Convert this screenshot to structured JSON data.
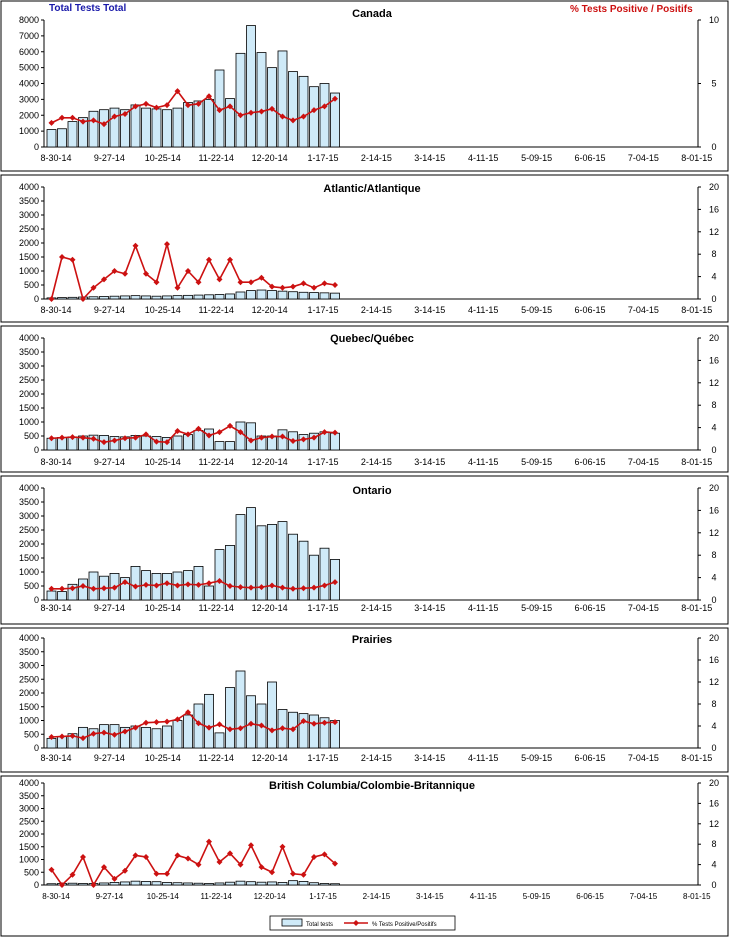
{
  "colors": {
    "bar_fill": "#cfeaf8",
    "bar_stroke": "#000000",
    "line": "#cc1111",
    "tests_title": "#1a1aaa",
    "pct_title": "#cc1111",
    "frame": "#000000"
  },
  "header": {
    "left_title": "Total Tests Total",
    "right_title": "% Tests Positive / Positifs"
  },
  "legend": {
    "tests_label": "Total tests",
    "pct_label": "% Tests Positive/Positifs"
  },
  "chart_data": [
    {
      "type": "bar+line",
      "title": "Canada",
      "categories": [
        "8-30-14",
        "9-27-14",
        "10-25-14",
        "11-22-14",
        "12-20-14",
        "1-17-15",
        "2-14-15",
        "3-14-15",
        "4-11-15",
        "5-09-15",
        "6-06-15",
        "7-04-15",
        "8-01-15"
      ],
      "ylim": [
        0,
        8000
      ],
      "yticks": [
        0,
        1000,
        2000,
        3000,
        4000,
        5000,
        6000,
        7000,
        8000
      ],
      "y2lim": [
        0,
        10
      ],
      "y2ticks": [
        0,
        5,
        10
      ],
      "tests": [
        1100,
        1150,
        1600,
        1850,
        2250,
        2350,
        2450,
        2350,
        2650,
        2450,
        2400,
        2350,
        2450,
        2800,
        2900,
        3000,
        4850,
        3050,
        5900,
        7650,
        5950,
        5000,
        6050,
        4750,
        4450,
        3800,
        4000,
        3400
      ],
      "pct_positive": [
        1.9,
        2.3,
        2.3,
        2.0,
        2.1,
        1.8,
        2.4,
        2.6,
        3.2,
        3.4,
        3.1,
        3.3,
        4.4,
        3.3,
        3.4,
        4.0,
        2.9,
        3.2,
        2.5,
        2.7,
        2.8,
        3.0,
        2.4,
        2.1,
        2.4,
        2.9,
        3.2,
        3.8
      ]
    },
    {
      "type": "bar+line",
      "title": "Atlantic/Atlantique",
      "categories": [
        "8-30-14",
        "9-27-14",
        "10-25-14",
        "11-22-14",
        "12-20-14",
        "1-17-15",
        "2-14-15",
        "3-14-15",
        "4-11-15",
        "5-09-15",
        "6-06-15",
        "7-04-15",
        "8-01-15"
      ],
      "ylim": [
        0,
        4000
      ],
      "yticks": [
        0,
        500,
        1000,
        1500,
        2000,
        2500,
        3000,
        3500,
        4000
      ],
      "y2lim": [
        0,
        20
      ],
      "y2ticks": [
        0,
        4,
        8,
        12,
        16,
        20
      ],
      "tests": [
        40,
        50,
        60,
        70,
        80,
        90,
        100,
        110,
        120,
        110,
        100,
        110,
        120,
        130,
        140,
        150,
        160,
        180,
        250,
        300,
        320,
        300,
        280,
        260,
        240,
        230,
        220,
        210
      ],
      "pct_positive": [
        0,
        7.5,
        7,
        0,
        2,
        3.5,
        5,
        4.5,
        9.5,
        4.5,
        3,
        9.8,
        2,
        5,
        3,
        7,
        3.5,
        7,
        3,
        3,
        3.8,
        2.2,
        2,
        2.2,
        2.8,
        2,
        2.8,
        2.5
      ]
    },
    {
      "type": "bar+line",
      "title": "Quebec/Québec",
      "categories": [
        "8-30-14",
        "9-27-14",
        "10-25-14",
        "11-22-14",
        "12-20-14",
        "1-17-15",
        "2-14-15",
        "3-14-15",
        "4-11-15",
        "5-09-15",
        "6-06-15",
        "7-04-15",
        "8-01-15"
      ],
      "ylim": [
        0,
        4000
      ],
      "yticks": [
        0,
        500,
        1000,
        1500,
        2000,
        2500,
        3000,
        3500,
        4000
      ],
      "y2lim": [
        0,
        20
      ],
      "y2ticks": [
        0,
        4,
        8,
        12,
        16,
        20
      ],
      "tests": [
        420,
        450,
        470,
        500,
        530,
        520,
        480,
        470,
        520,
        500,
        480,
        450,
        500,
        550,
        700,
        750,
        300,
        300,
        1000,
        970,
        500,
        500,
        720,
        650,
        550,
        600,
        650,
        600
      ],
      "pct_positive": [
        2.1,
        2.2,
        2.3,
        2.2,
        2.0,
        1.4,
        1.7,
        2.1,
        2.2,
        2.8,
        1.5,
        1.4,
        3.4,
        2.8,
        3.8,
        2.6,
        3.2,
        4.3,
        3.2,
        1.7,
        2.2,
        2.4,
        2.4,
        1.6,
        1.9,
        2.2,
        3.2,
        3.1
      ]
    },
    {
      "type": "bar+line",
      "title": "Ontario",
      "categories": [
        "8-30-14",
        "9-27-14",
        "10-25-14",
        "11-22-14",
        "12-20-14",
        "1-17-15",
        "2-14-15",
        "3-14-15",
        "4-11-15",
        "5-09-15",
        "6-06-15",
        "7-04-15",
        "8-01-15"
      ],
      "ylim": [
        0,
        4000
      ],
      "yticks": [
        0,
        500,
        1000,
        1500,
        2000,
        2500,
        3000,
        3500,
        4000
      ],
      "y2lim": [
        0,
        20
      ],
      "y2ticks": [
        0,
        4,
        8,
        12,
        16,
        20
      ],
      "tests": [
        320,
        300,
        560,
        750,
        1000,
        850,
        950,
        800,
        1200,
        1050,
        950,
        950,
        1000,
        1050,
        1200,
        500,
        1800,
        1950,
        3050,
        3300,
        2650,
        2700,
        2800,
        2350,
        2100,
        1600,
        1850,
        1450
      ],
      "pct_positive": [
        2.0,
        2.0,
        2.1,
        2.5,
        2.0,
        2.1,
        2.2,
        3.2,
        2.4,
        2.7,
        2.6,
        3.0,
        2.6,
        2.8,
        2.7,
        3.0,
        3.4,
        2.5,
        2.3,
        2.2,
        2.3,
        2.6,
        2.2,
        2.0,
        2.1,
        2.2,
        2.6,
        3.2
      ]
    },
    {
      "type": "bar+line",
      "title": "Prairies",
      "categories": [
        "8-30-14",
        "9-27-14",
        "10-25-14",
        "11-22-14",
        "12-20-14",
        "1-17-15",
        "2-14-15",
        "3-14-15",
        "4-11-15",
        "5-09-15",
        "6-06-15",
        "7-04-15",
        "8-01-15"
      ],
      "ylim": [
        0,
        4000
      ],
      "yticks": [
        0,
        500,
        1000,
        1500,
        2000,
        2500,
        3000,
        3500,
        4000
      ],
      "y2lim": [
        0,
        20
      ],
      "y2ticks": [
        0,
        4,
        8,
        12,
        16,
        20
      ],
      "tests": [
        350,
        420,
        520,
        750,
        700,
        850,
        850,
        750,
        800,
        750,
        700,
        800,
        1000,
        1200,
        1600,
        1950,
        550,
        2200,
        2800,
        1900,
        1600,
        2400,
        1400,
        1300,
        1250,
        1200,
        1100,
        1000
      ],
      "pct_positive": [
        2.0,
        2.1,
        2.2,
        1.8,
        2.6,
        2.8,
        2.4,
        3.0,
        3.7,
        4.6,
        4.7,
        4.8,
        5.2,
        6.5,
        4.5,
        3.7,
        4.3,
        3.4,
        3.6,
        4.4,
        4.1,
        3.2,
        3.6,
        3.4,
        4.9,
        4.4,
        4.6,
        4.7
      ]
    },
    {
      "type": "bar+line",
      "title": "British Columbia/Colombie-Britannique",
      "categories": [
        "8-30-14",
        "9-27-14",
        "10-25-14",
        "11-22-14",
        "12-20-14",
        "1-17-15",
        "2-14-15",
        "3-14-15",
        "4-11-15",
        "5-09-15",
        "6-06-15",
        "7-04-15",
        "8-01-15"
      ],
      "ylim": [
        0,
        4000
      ],
      "yticks": [
        0,
        500,
        1000,
        1500,
        2000,
        2500,
        3000,
        3500,
        4000
      ],
      "y2lim": [
        0,
        20
      ],
      "y2ticks": [
        0,
        4,
        8,
        12,
        16,
        20
      ],
      "tests": [
        50,
        60,
        70,
        60,
        60,
        80,
        100,
        120,
        150,
        140,
        130,
        100,
        90,
        80,
        70,
        60,
        80,
        110,
        150,
        130,
        110,
        120,
        100,
        170,
        140,
        90,
        60,
        50
      ],
      "pct_positive": [
        3.0,
        0,
        2.0,
        5.5,
        0,
        3.5,
        1.2,
        2.8,
        5.8,
        5.5,
        2.2,
        2.2,
        5.8,
        5.2,
        4.0,
        8.5,
        4.5,
        6.2,
        4.0,
        7.8,
        3.5,
        2.5,
        7.5,
        2.2,
        2.0,
        5.5,
        6.0,
        4.2
      ]
    }
  ]
}
